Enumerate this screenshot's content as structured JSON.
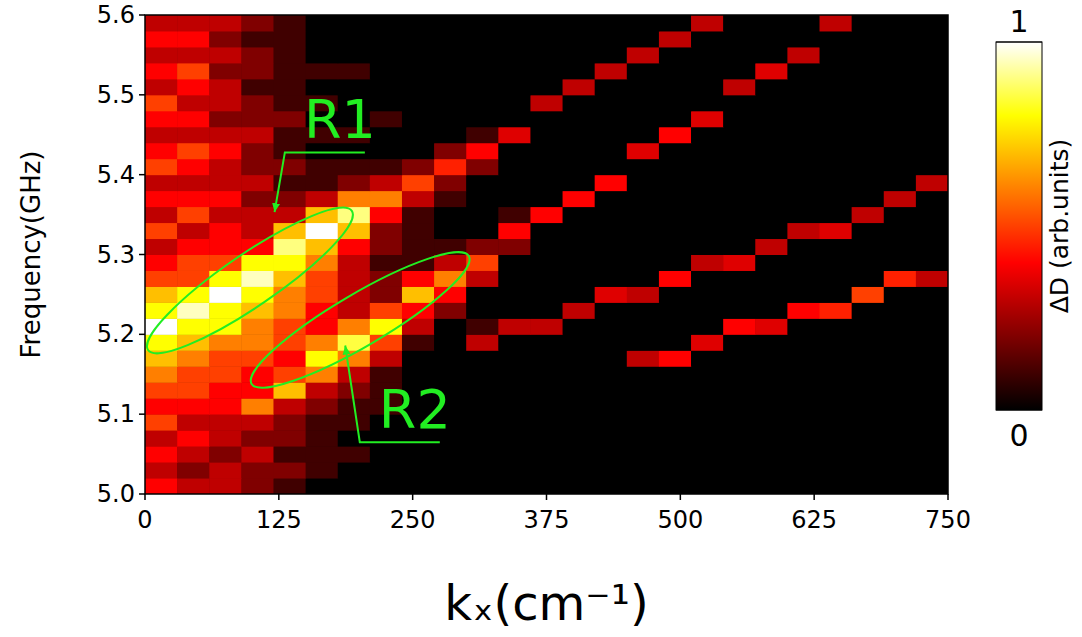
{
  "chart_data": {
    "type": "heatmap",
    "xlabel": "kₓ(cm⁻¹)",
    "ylabel": "Frequency(GHz)",
    "x": [
      15,
      45,
      75,
      105,
      135,
      165,
      195,
      225,
      255,
      285,
      315,
      345,
      375,
      405,
      435,
      465,
      495,
      525,
      555,
      585,
      615,
      645,
      675,
      705,
      735
    ],
    "y": [
      5.01,
      5.03,
      5.05,
      5.07,
      5.09,
      5.11,
      5.13,
      5.15,
      5.17,
      5.19,
      5.21,
      5.23,
      5.25,
      5.27,
      5.29,
      5.31,
      5.33,
      5.35,
      5.37,
      5.39,
      5.41,
      5.43,
      5.45,
      5.47,
      5.49,
      5.51,
      5.53,
      5.55,
      5.57,
      5.59
    ],
    "values": [
      [
        0.4,
        0.3,
        0.3,
        0.2,
        0.1,
        0,
        0,
        0,
        0,
        0,
        0,
        0,
        0,
        0,
        0,
        0,
        0,
        0,
        0,
        0,
        0,
        0,
        0,
        0,
        0
      ],
      [
        0.3,
        0.2,
        0.3,
        0.2,
        0.2,
        0.1,
        0,
        0,
        0,
        0,
        0,
        0,
        0,
        0,
        0,
        0,
        0,
        0,
        0,
        0,
        0,
        0,
        0,
        0,
        0
      ],
      [
        0.4,
        0.3,
        0.2,
        0.3,
        0.1,
        0.1,
        0.1,
        0,
        0,
        0,
        0,
        0,
        0,
        0,
        0,
        0,
        0,
        0,
        0,
        0,
        0,
        0,
        0,
        0,
        0
      ],
      [
        0.3,
        0.4,
        0.3,
        0.2,
        0.2,
        0.1,
        0,
        0,
        0,
        0,
        0,
        0,
        0,
        0,
        0,
        0,
        0,
        0,
        0,
        0,
        0,
        0,
        0,
        0,
        0
      ],
      [
        0.5,
        0.3,
        0.3,
        0.3,
        0.2,
        0.1,
        0.1,
        0,
        0,
        0,
        0,
        0,
        0,
        0,
        0,
        0,
        0,
        0,
        0,
        0,
        0,
        0,
        0,
        0,
        0
      ],
      [
        0.4,
        0.4,
        0.4,
        0.6,
        0.3,
        0.2,
        0.1,
        0.1,
        0,
        0,
        0,
        0,
        0,
        0,
        0,
        0,
        0,
        0,
        0,
        0,
        0,
        0,
        0,
        0,
        0
      ],
      [
        0.5,
        0.5,
        0.4,
        0.4,
        0.7,
        0.3,
        0.2,
        0.1,
        0,
        0,
        0,
        0,
        0,
        0,
        0,
        0,
        0,
        0,
        0,
        0,
        0,
        0,
        0,
        0,
        0
      ],
      [
        0.6,
        0.5,
        0.5,
        0.4,
        0.5,
        0.6,
        0.3,
        0.1,
        0,
        0,
        0,
        0,
        0,
        0,
        0,
        0,
        0,
        0,
        0,
        0,
        0,
        0,
        0,
        0,
        0
      ],
      [
        0.7,
        0.6,
        0.5,
        0.5,
        0.4,
        0.8,
        0.6,
        0.3,
        0,
        0,
        0,
        0,
        0,
        0,
        0,
        0.3,
        0.4,
        0,
        0,
        0,
        0,
        0,
        0,
        0,
        0
      ],
      [
        0.8,
        0.7,
        0.6,
        0.6,
        0.5,
        0.6,
        0.85,
        0.5,
        0.1,
        0,
        0.3,
        0,
        0,
        0,
        0,
        0,
        0,
        0.35,
        0,
        0,
        0,
        0,
        0,
        0,
        0
      ],
      [
        1,
        0.8,
        0.8,
        0.6,
        0.5,
        0.4,
        0.6,
        0.8,
        0.3,
        0,
        0.1,
        0.3,
        0.3,
        0,
        0,
        0,
        0,
        0,
        0.4,
        0.35,
        0,
        0,
        0,
        0,
        0
      ],
      [
        0.8,
        0.95,
        0.8,
        0.7,
        0.6,
        0.4,
        0.3,
        0.5,
        0.4,
        0.2,
        0,
        0,
        0,
        0.3,
        0,
        0,
        0,
        0,
        0,
        0,
        0.4,
        0.45,
        0,
        0,
        0
      ],
      [
        0.7,
        0.8,
        1,
        0.8,
        0.6,
        0.5,
        0.3,
        0.2,
        0.7,
        0.4,
        0,
        0,
        0,
        0,
        0.35,
        0.3,
        0,
        0,
        0,
        0,
        0,
        0,
        0.5,
        0,
        0
      ],
      [
        0.5,
        0.5,
        0.8,
        0.95,
        0.7,
        0.5,
        0.3,
        0.2,
        0.4,
        0.6,
        0.3,
        0,
        0,
        0,
        0,
        0,
        0.4,
        0,
        0,
        0,
        0,
        0,
        0,
        0.45,
        0.3
      ],
      [
        0.4,
        0.5,
        0.5,
        0.8,
        0.8,
        0.6,
        0.3,
        0.1,
        0.1,
        0.3,
        0.5,
        0,
        0,
        0,
        0,
        0,
        0,
        0.3,
        0.35,
        0,
        0,
        0,
        0,
        0,
        0
      ],
      [
        0.3,
        0.4,
        0.4,
        0.4,
        0.9,
        0.7,
        0.4,
        0.2,
        0.1,
        0.1,
        0.2,
        0.2,
        0,
        0,
        0,
        0,
        0,
        0,
        0,
        0.3,
        0,
        0,
        0,
        0,
        0
      ],
      [
        0.5,
        0.3,
        0.4,
        0.3,
        0.7,
        1,
        0.7,
        0.2,
        0.1,
        0,
        0,
        0.4,
        0,
        0,
        0,
        0,
        0,
        0,
        0,
        0,
        0.3,
        0.35,
        0,
        0,
        0
      ],
      [
        0.3,
        0.5,
        0.3,
        0.3,
        0.3,
        0.7,
        0.9,
        0.4,
        0.1,
        0,
        0,
        0.1,
        0.4,
        0,
        0,
        0,
        0,
        0,
        0,
        0,
        0,
        0,
        0.3,
        0,
        0
      ],
      [
        0.4,
        0.4,
        0.4,
        0.2,
        0.2,
        0.3,
        0.6,
        0.6,
        0.3,
        0.1,
        0,
        0,
        0,
        0.4,
        0,
        0,
        0,
        0,
        0,
        0,
        0,
        0,
        0,
        0.3,
        0
      ],
      [
        0.3,
        0.3,
        0.3,
        0.3,
        0.1,
        0.1,
        0.2,
        0.3,
        0.5,
        0.2,
        0,
        0,
        0,
        0,
        0.4,
        0,
        0,
        0,
        0,
        0,
        0,
        0,
        0,
        0,
        0.3
      ],
      [
        0.5,
        0.4,
        0.3,
        0.2,
        0.2,
        0.1,
        0.1,
        0.1,
        0.2,
        0.45,
        0.2,
        0,
        0,
        0,
        0,
        0,
        0,
        0,
        0,
        0,
        0,
        0,
        0,
        0,
        0
      ],
      [
        0.4,
        0.5,
        0.4,
        0.2,
        0.1,
        0,
        0,
        0,
        0,
        0.2,
        0.4,
        0,
        0,
        0,
        0,
        0.35,
        0,
        0,
        0,
        0,
        0,
        0,
        0,
        0,
        0
      ],
      [
        0.3,
        0.3,
        0.3,
        0.3,
        0.1,
        0.1,
        0.1,
        0,
        0,
        0,
        0.1,
        0.35,
        0,
        0,
        0,
        0,
        0.4,
        0,
        0,
        0,
        0,
        0,
        0,
        0,
        0
      ],
      [
        0.4,
        0.4,
        0.2,
        0.2,
        0.2,
        0,
        0,
        0.1,
        0,
        0,
        0,
        0,
        0,
        0,
        0,
        0,
        0,
        0.35,
        0,
        0,
        0,
        0,
        0,
        0,
        0
      ],
      [
        0.5,
        0.3,
        0.3,
        0.2,
        0.1,
        0.1,
        0,
        0,
        0,
        0,
        0,
        0,
        0.3,
        0,
        0,
        0,
        0,
        0,
        0,
        0,
        0,
        0,
        0,
        0,
        0
      ],
      [
        0.3,
        0.4,
        0.3,
        0.1,
        0.1,
        0,
        0,
        0,
        0,
        0,
        0,
        0,
        0,
        0.3,
        0,
        0,
        0,
        0,
        0.3,
        0,
        0,
        0,
        0,
        0,
        0
      ],
      [
        0.4,
        0.5,
        0.2,
        0.2,
        0.1,
        0.1,
        0.1,
        0,
        0,
        0,
        0,
        0,
        0,
        0,
        0.3,
        0,
        0,
        0,
        0,
        0.35,
        0,
        0,
        0,
        0,
        0
      ],
      [
        0.3,
        0.3,
        0.3,
        0.2,
        0.1,
        0,
        0,
        0,
        0,
        0,
        0,
        0,
        0,
        0,
        0,
        0.3,
        0,
        0,
        0,
        0,
        0.3,
        0,
        0,
        0,
        0
      ],
      [
        0.4,
        0.4,
        0.2,
        0.1,
        0.1,
        0,
        0,
        0,
        0,
        0,
        0,
        0,
        0,
        0,
        0,
        0,
        0.3,
        0,
        0,
        0,
        0,
        0,
        0,
        0,
        0
      ],
      [
        0.3,
        0.3,
        0.3,
        0.2,
        0.1,
        0,
        0,
        0,
        0,
        0,
        0,
        0,
        0,
        0,
        0,
        0,
        0,
        0.3,
        0,
        0,
        0,
        0.3,
        0,
        0,
        0
      ]
    ],
    "xlim": [
      0,
      750
    ],
    "ylim": [
      5,
      5.6
    ],
    "xticks": [
      0,
      125,
      250,
      375,
      500,
      625,
      750
    ],
    "yticks": [
      {
        "value": 5,
        "label": "5.0"
      },
      5.1,
      5.2,
      5.3,
      5.4,
      5.5,
      5.6
    ],
    "colorbar": {
      "label": "ΔD (arb.units)",
      "range": [
        0,
        1
      ],
      "ticks": [
        0,
        1
      ]
    },
    "annotations": [
      {
        "text": "R1",
        "x": 182,
        "y": 5.468,
        "target": [
          121,
          5.353
        ],
        "ellipse": [
          9,
          5.186,
          187,
          5.349
        ]
      },
      {
        "text": "R2",
        "x": 252,
        "y": 5.105,
        "target": [
          187,
          5.186
        ],
        "ellipse": [
          106,
          5.143,
          296,
          5.293
        ]
      }
    ]
  }
}
